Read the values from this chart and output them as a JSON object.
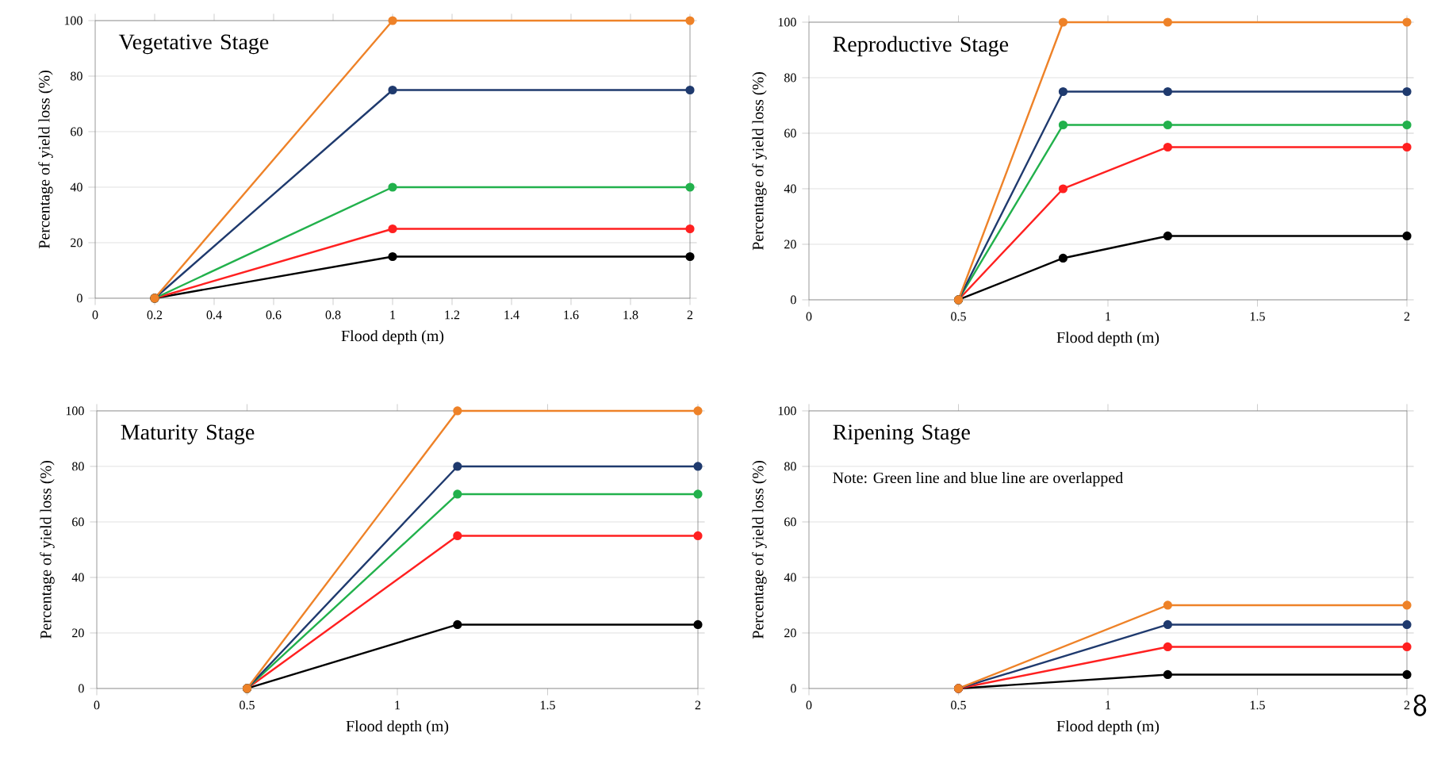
{
  "chart_data": [
    {
      "type": "line",
      "title": "Vegetative Stage",
      "xlabel": "Flood depth (m)",
      "ylabel": "Percentage of yield loss (%)",
      "x": [
        0.2,
        1,
        2
      ],
      "xlim": [
        0,
        2
      ],
      "xticks": [
        0,
        0.2,
        0.4,
        0.6,
        0.8,
        1,
        1.2,
        1.4,
        1.6,
        1.8,
        2
      ],
      "ylim": [
        0,
        100
      ],
      "yticks": [
        0,
        20,
        40,
        60,
        80,
        100
      ],
      "grid": "y",
      "marker": "circle",
      "line_style": "solid",
      "series": [
        {
          "color": "#000000",
          "values": [
            0,
            15,
            15
          ]
        },
        {
          "color": "#ff2020",
          "values": [
            0,
            25,
            25
          ]
        },
        {
          "color": "#22b14c",
          "values": [
            0,
            40,
            40
          ]
        },
        {
          "color": "#1f3a6e",
          "values": [
            0,
            75,
            75
          ]
        },
        {
          "color": "#ee8228",
          "values": [
            0,
            100,
            100
          ]
        }
      ]
    },
    {
      "type": "line",
      "title": "Reproductive Stage",
      "xlabel": "Flood depth (m)",
      "ylabel": "Percentage of yield loss (%)",
      "x": [
        0.5,
        0.85,
        1.2,
        2
      ],
      "xlim": [
        0,
        2
      ],
      "xticks": [
        0,
        0.5,
        1,
        1.5,
        2
      ],
      "ylim": [
        0,
        100
      ],
      "yticks": [
        0,
        20,
        40,
        60,
        80,
        100
      ],
      "grid": "y",
      "marker": "circle",
      "line_style": "solid",
      "series": [
        {
          "color": "#000000",
          "values": [
            0,
            15,
            23,
            23
          ]
        },
        {
          "color": "#ff2020",
          "values": [
            0,
            40,
            55,
            55
          ]
        },
        {
          "color": "#22b14c",
          "values": [
            0,
            63,
            63,
            63
          ]
        },
        {
          "color": "#1f3a6e",
          "values": [
            0,
            75,
            75,
            75
          ]
        },
        {
          "color": "#ee8228",
          "values": [
            0,
            100,
            100,
            100
          ]
        }
      ]
    },
    {
      "type": "line",
      "title": "Maturity Stage",
      "xlabel": "Flood depth (m)",
      "ylabel": "Percentage of yield loss (%)",
      "x": [
        0.5,
        1.2,
        2
      ],
      "xlim": [
        0,
        2
      ],
      "xticks": [
        0,
        0.5,
        1,
        1.5,
        2
      ],
      "ylim": [
        0,
        100
      ],
      "yticks": [
        0,
        20,
        40,
        60,
        80,
        100
      ],
      "grid": "y",
      "marker": "circle",
      "line_style": "solid",
      "series": [
        {
          "color": "#000000",
          "values": [
            0,
            23,
            23
          ]
        },
        {
          "color": "#ff2020",
          "values": [
            0,
            55,
            55
          ]
        },
        {
          "color": "#22b14c",
          "values": [
            0,
            70,
            70
          ]
        },
        {
          "color": "#1f3a6e",
          "values": [
            0,
            80,
            80
          ]
        },
        {
          "color": "#ee8228",
          "values": [
            0,
            100,
            100
          ]
        }
      ]
    },
    {
      "type": "line",
      "title": "Ripening Stage",
      "xlabel": "Flood depth (m)",
      "ylabel": "Percentage of yield loss (%)",
      "x": [
        0.5,
        1.2,
        2
      ],
      "xlim": [
        0,
        2
      ],
      "xticks": [
        0,
        0.5,
        1,
        1.5,
        2
      ],
      "ylim": [
        0,
        100
      ],
      "yticks": [
        0,
        20,
        40,
        60,
        80,
        100
      ],
      "grid": "y",
      "marker": "circle",
      "line_style": "solid",
      "annotations": [
        "Note: Green line and blue line are overlapped",
        "8"
      ],
      "series": [
        {
          "color": "#000000",
          "values": [
            0,
            5,
            5
          ]
        },
        {
          "color": "#ff2020",
          "values": [
            0,
            15,
            15
          ]
        },
        {
          "color": "#1f3a6e",
          "values": [
            0,
            23,
            23
          ]
        },
        {
          "color": "#ee8228",
          "values": [
            0,
            30,
            30
          ]
        }
      ]
    }
  ]
}
